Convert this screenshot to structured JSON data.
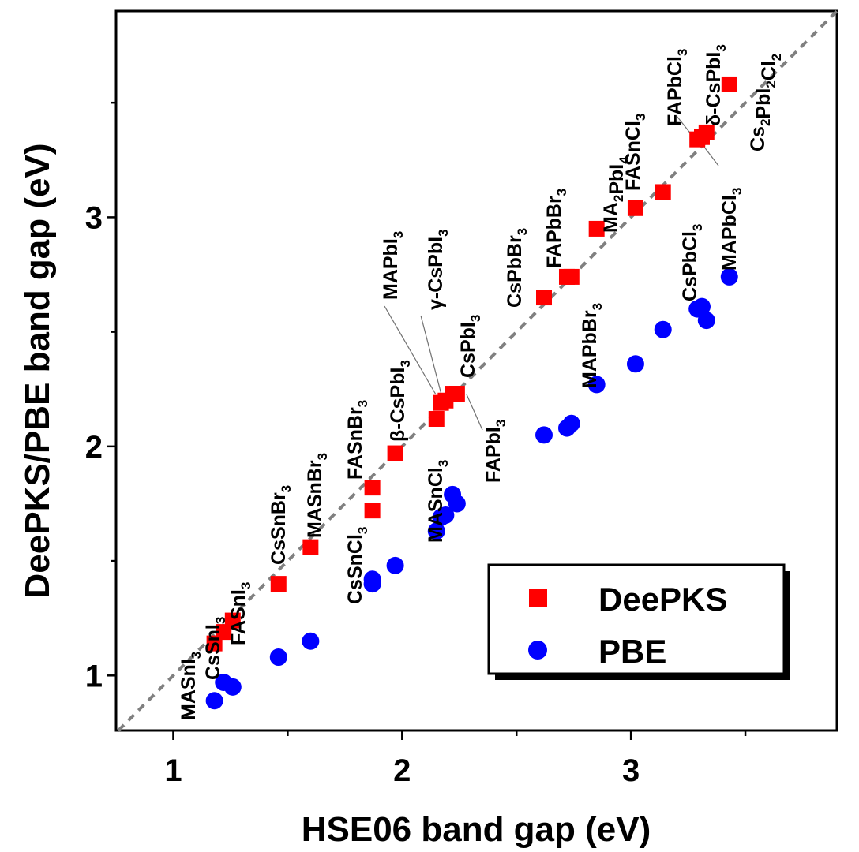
{
  "chart_data": {
    "type": "scatter",
    "title": "",
    "xlabel": "HSE06 band gap (eV)",
    "ylabel": "DeePKS/PBE band gap (eV)",
    "xlim": [
      0.75,
      3.9
    ],
    "ylim": [
      0.76,
      3.9
    ],
    "xticks": [
      "1",
      "2",
      "3"
    ],
    "yticks": [
      "1",
      "2",
      "3"
    ],
    "diagonal": "y = x (dashed gray)",
    "legend_position": "bottom-right",
    "series": [
      {
        "name": "DeePKS",
        "marker": "square",
        "color": "#ff0000"
      },
      {
        "name": "PBE",
        "marker": "circle",
        "color": "#0000ff"
      }
    ],
    "points": [
      {
        "label": "MASnI3",
        "hse": 1.18,
        "deepks": 1.14,
        "pbe": 0.89
      },
      {
        "label": "CsSnI3",
        "hse": 1.22,
        "deepks": 1.19,
        "pbe": 0.97
      },
      {
        "label": "FASnI3",
        "hse": 1.26,
        "deepks": 1.24,
        "pbe": 0.95
      },
      {
        "label": "CsSnBr3",
        "hse": 1.46,
        "deepks": 1.4,
        "pbe": 1.08
      },
      {
        "label": "MASnBr3",
        "hse": 1.6,
        "deepks": 1.56,
        "pbe": 1.15
      },
      {
        "label": "CsSnCl3",
        "hse": 1.87,
        "deepks": 1.72,
        "pbe": 1.42
      },
      {
        "label": "FASnBr3",
        "hse": 1.87,
        "deepks": 1.82,
        "pbe": 1.4
      },
      {
        "label": "β-CsPbI3",
        "hse": 1.97,
        "deepks": 1.97,
        "pbe": 1.48
      },
      {
        "label": "MASnCl3",
        "hse": 2.15,
        "deepks": 2.12,
        "pbe": 1.63
      },
      {
        "label": "MAPbI3",
        "hse": 2.17,
        "deepks": 2.19,
        "pbe": 1.69
      },
      {
        "label": "γ-CsPbI3",
        "hse": 2.19,
        "deepks": 2.2,
        "pbe": 1.7
      },
      {
        "label": "CsPbI3",
        "hse": 2.22,
        "deepks": 2.23,
        "pbe": 1.79
      },
      {
        "label": "FAPbI3",
        "hse": 2.24,
        "deepks": 2.23,
        "pbe": 1.75
      },
      {
        "label": "CsPbBr3",
        "hse": 2.62,
        "deepks": 2.65,
        "pbe": 2.05
      },
      {
        "label": "FAPbBr3",
        "hse": 2.72,
        "deepks": 2.74,
        "pbe": 2.08
      },
      {
        "label": "MAPbBr3",
        "hse": 2.74,
        "deepks": 2.74,
        "pbe": 2.1
      },
      {
        "label": "MA2PbI4",
        "hse": 2.85,
        "deepks": 2.95,
        "pbe": 2.27
      },
      {
        "label": "FASnCl3",
        "hse": 3.02,
        "deepks": 3.04,
        "pbe": 2.36
      },
      {
        "label": "CsPbCl3",
        "hse": 3.14,
        "deepks": 3.11,
        "pbe": 2.51
      },
      {
        "label": "MAPbCl3",
        "hse": 3.29,
        "deepks": 3.34,
        "pbe": 2.6
      },
      {
        "label": "FAPbCl3",
        "hse": 3.31,
        "deepks": 3.35,
        "pbe": 2.61
      },
      {
        "label": "δ-CsPbI3",
        "hse": 3.33,
        "deepks": 3.37,
        "pbe": 2.55
      },
      {
        "label": "Cs2PbI2Cl2",
        "hse": 3.43,
        "deepks": 3.58,
        "pbe": 2.74
      }
    ]
  },
  "axis_labels": {
    "x": "HSE06 band gap (eV)",
    "y": "DeePKS/PBE band gap (eV)",
    "xticks": [
      "1",
      "2",
      "3"
    ],
    "yticks": [
      "1",
      "2",
      "3"
    ]
  },
  "legend": {
    "deepks": "DeePKS",
    "pbe": "PBE"
  },
  "annotations": [
    {
      "base": "MASnI",
      "sub": "3"
    },
    {
      "base": "CsSnI",
      "sub": "3"
    },
    {
      "base": "FASnI",
      "sub": "3"
    },
    {
      "base": "CsSnBr",
      "sub": "3"
    },
    {
      "base": "MASnBr",
      "sub": "3"
    },
    {
      "base": "CsSnCl",
      "sub": "3"
    },
    {
      "base": "FASnBr",
      "sub": "3"
    },
    {
      "base": "β-CsPbI",
      "sub": "3"
    },
    {
      "base": "MASnCl",
      "sub": "3"
    },
    {
      "base": "MAPbI",
      "sub": "3"
    },
    {
      "base": "γ-CsPbI",
      "sub": "3"
    },
    {
      "base": "CsPbI",
      "sub": "3"
    },
    {
      "base": "FAPbI",
      "sub": "3"
    },
    {
      "base": "CsPbBr",
      "sub": "3"
    },
    {
      "base": "MAPbBr",
      "sub": "3"
    },
    {
      "base": "FAPbBr",
      "sub": "3"
    },
    {
      "base": "MA",
      "sub": "2",
      "base2": "PbI",
      "sub2": "4"
    },
    {
      "base": "FASnCl",
      "sub": "3"
    },
    {
      "base": "CsPbCl",
      "sub": "3"
    },
    {
      "base": "FAPbCl",
      "sub": "3"
    },
    {
      "base": "δ-CsPbI",
      "sub": "3"
    },
    {
      "base": "MAPbCl",
      "sub": "3"
    },
    {
      "base": "Cs",
      "sub": "2",
      "base2": "PbI",
      "sub2": "2",
      "base3": "Cl",
      "sub3": "2"
    }
  ]
}
